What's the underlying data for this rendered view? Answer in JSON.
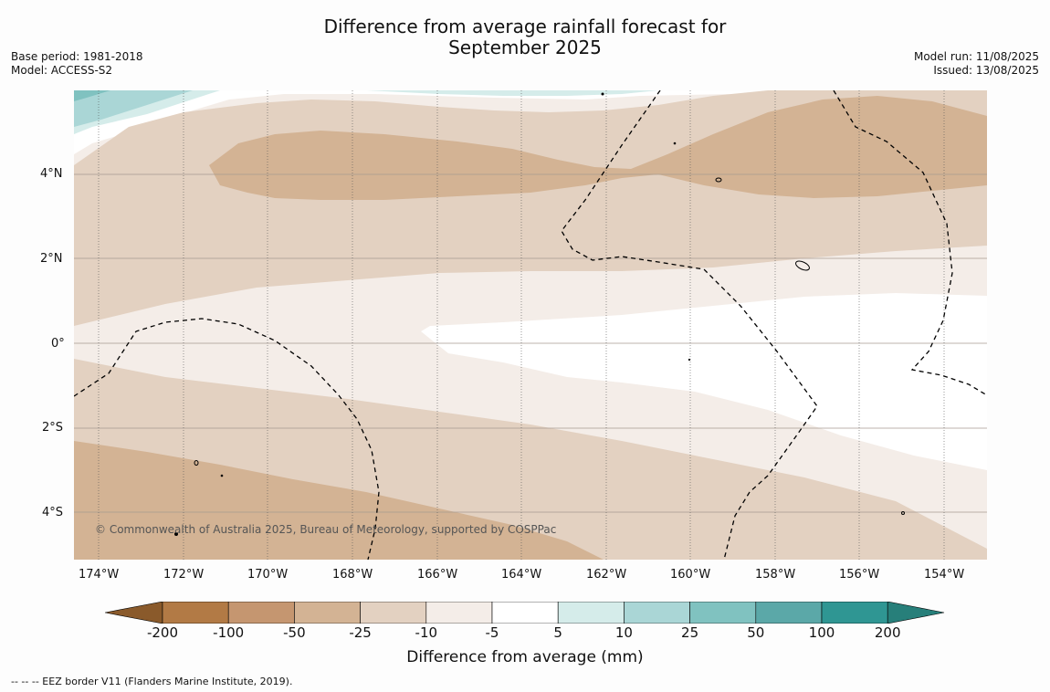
{
  "title_line1": "Difference from average rainfall forecast for",
  "title_line2": "September 2025",
  "base_period": "Base period: 1981-2018",
  "model": "Model: ACCESS-S2",
  "model_run": "Model run: 11/08/2025",
  "issued": "Issued: 13/08/2025",
  "copyright": "© Commonwealth of Australia 2025, Bureau of Meteorology, supported by COSPPac",
  "lat_labels": [
    "4°N",
    "2°N",
    "0°",
    "2°S",
    "4°S"
  ],
  "lon_labels": [
    "174°W",
    "172°W",
    "170°W",
    "168°W",
    "166°W",
    "164°W",
    "162°W",
    "160°W",
    "158°W",
    "156°W",
    "154°W"
  ],
  "colorbar": {
    "labels": [
      "-200",
      "-100",
      "-50",
      "-25",
      "-10",
      "-5",
      "5",
      "10",
      "25",
      "50",
      "100",
      "200"
    ],
    "colors": [
      "#8a5a2b",
      "#b27a45",
      "#c59670",
      "#d3b394",
      "#e3d1c1",
      "#f4ede8",
      "#ffffff",
      "#d5ecea",
      "#aad6d6",
      "#80c2c0",
      "#5ba8a8",
      "#2f9693",
      "#277f7a"
    ],
    "title": "Difference from average (mm)"
  },
  "legend_note": "--  --  -- EEZ border V11 (Flanders Marine Institute, 2019)."
}
